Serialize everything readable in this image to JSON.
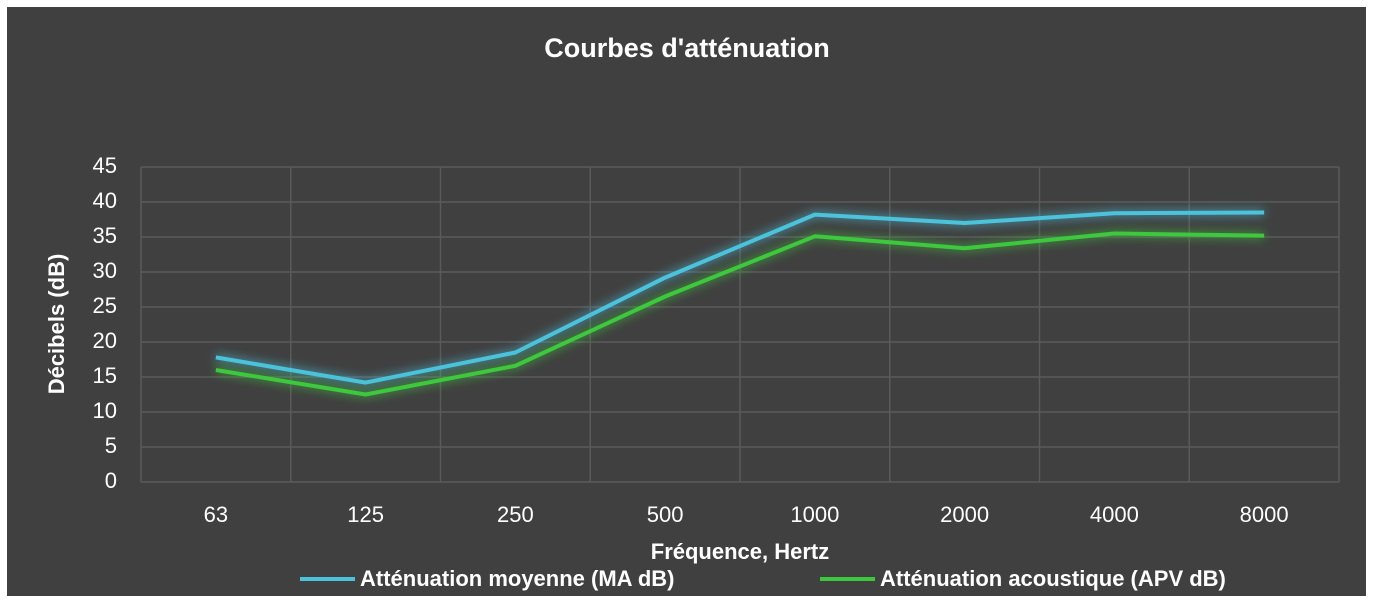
{
  "chart_data": {
    "type": "line",
    "title": "Courbes d'atténuation",
    "x_label": "Fréquence, Hertz",
    "y_label": "Décibels (dB)",
    "categories": [
      "63",
      "125",
      "250",
      "500",
      "1000",
      "2000",
      "4000",
      "8000"
    ],
    "series": [
      {
        "name": "Atténuation moyenne (MA dB)",
        "color": "#4cc3dd",
        "values": [
          17.8,
          14.2,
          18.5,
          29.2,
          38.2,
          37,
          38.4,
          38.5
        ]
      },
      {
        "name": "Atténuation acoustique (APV dB)",
        "color": "#3cc83c",
        "values": [
          16,
          12.5,
          16.6,
          26.5,
          35.1,
          33.4,
          35.5,
          35.2
        ]
      }
    ],
    "ylim": [
      0,
      45
    ],
    "yticks": [
      0,
      5,
      10,
      15,
      20,
      25,
      30,
      35,
      40,
      45
    ],
    "grid": true,
    "legend": "bottom"
  }
}
